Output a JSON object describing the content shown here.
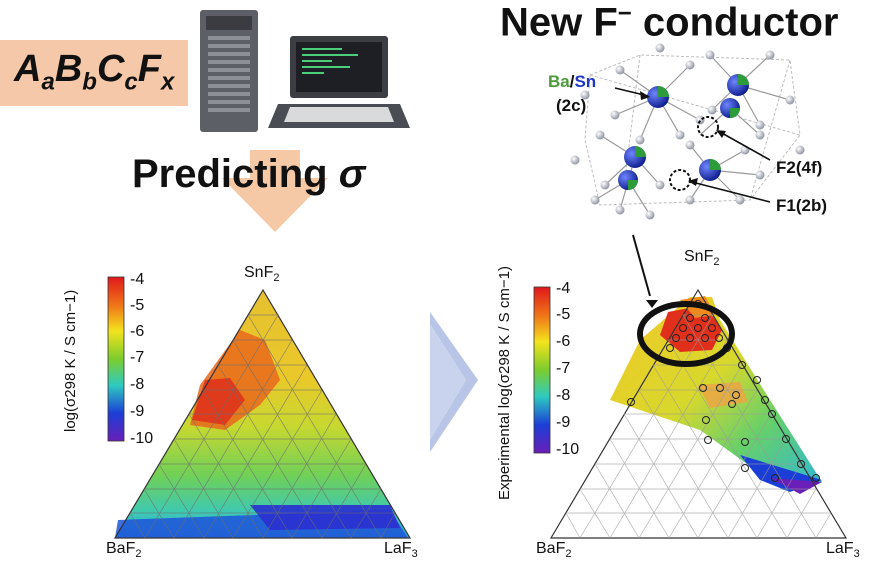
{
  "formula": {
    "parts": [
      "A",
      "a",
      "B",
      "b",
      "C",
      "c",
      "F",
      "x"
    ]
  },
  "predict_title": {
    "text": "Predicting",
    "symbol": "σ"
  },
  "new_title": {
    "prefix": "New F",
    "superscript": "−",
    "suffix": " conductor"
  },
  "crystal_labels": {
    "ba": "Ba",
    "slash": "/",
    "sn": "Sn",
    "site_2c": "(2c)",
    "f2": "F2(4f)",
    "f1": "F1(2b)"
  },
  "left_plot": {
    "top_vertex": {
      "base": "SnF",
      "sub": "2"
    },
    "left_vertex": {
      "base": "BaF",
      "sub": "2"
    },
    "right_vertex": {
      "base": "LaF",
      "sub": "3"
    },
    "colorbar_label": "log(σ298 K / S cm−1)",
    "colorbar_ticks": [
      "-4",
      "-5",
      "-6",
      "-7",
      "-8",
      "-9",
      "-10"
    ]
  },
  "right_plot": {
    "top_vertex": {
      "base": "SnF",
      "sub": "2"
    },
    "left_vertex": {
      "base": "BaF",
      "sub": "2"
    },
    "right_vertex": {
      "base": "LaF",
      "sub": "3"
    },
    "colorbar_label": "Experimental log(σ298 K / S cm−1)",
    "colorbar_ticks": [
      "-4",
      "-5",
      "-6",
      "-7",
      "-8",
      "-9",
      "-10"
    ]
  },
  "colors": {
    "formula_bg": "#f4c8a8",
    "arrow_orange": "#f6c9a6",
    "arrow_blue": "#aebbe0"
  }
}
